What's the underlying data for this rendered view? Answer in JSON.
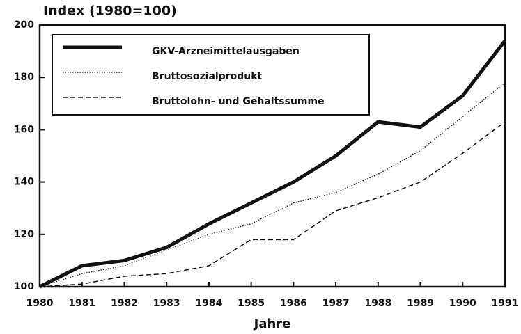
{
  "chart_data": {
    "type": "line",
    "title": "Index (1980=100)",
    "x_label": "Jahre",
    "x": [
      1980,
      1981,
      1982,
      1983,
      1984,
      1985,
      1986,
      1987,
      1988,
      1989,
      1990,
      1991
    ],
    "xlim": [
      1980,
      1991
    ],
    "xticks": [
      1980,
      1981,
      1982,
      1983,
      1984,
      1985,
      1986,
      1987,
      1988,
      1989,
      1990,
      1991
    ],
    "ylim": [
      100,
      200
    ],
    "yticks": [
      100,
      120,
      140,
      160,
      180,
      200
    ],
    "grid": false,
    "legend": "upper left",
    "series": [
      {
        "name": "GKV-Arzneimittelausgaben",
        "color": "#111111",
        "style": "thick",
        "values": [
          100,
          108,
          110,
          115,
          124,
          132,
          140,
          150,
          163,
          161,
          173,
          194
        ]
      },
      {
        "name": "Bruttosozialprodukt",
        "color": "#111111",
        "style": "dotted",
        "values": [
          100,
          105,
          108,
          114,
          120,
          124,
          132,
          136,
          143,
          152,
          165,
          178
        ]
      },
      {
        "name": "Bruttolohn- und Gehaltssumme",
        "color": "#111111",
        "style": "dashed",
        "values": [
          100,
          101,
          104,
          105,
          108,
          118,
          118,
          129,
          134,
          140,
          151,
          163
        ]
      }
    ]
  }
}
